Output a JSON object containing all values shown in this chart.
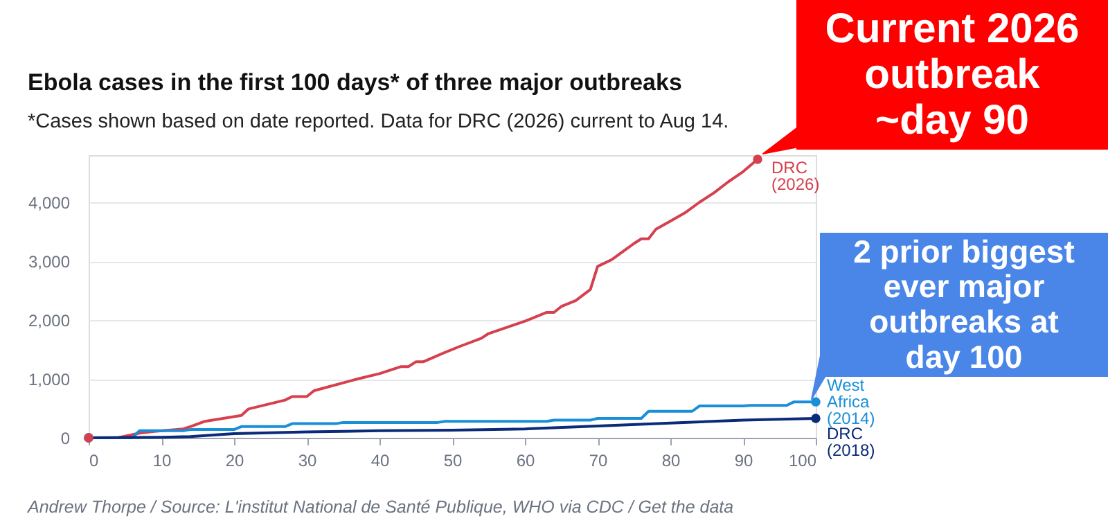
{
  "chart_data": {
    "type": "line",
    "title": "Ebola cases in the first 100 days* of three major outbreaks",
    "subtitle": "*Cases shown based on date reported. Data for DRC (2026) current to Aug 14.",
    "xlim": [
      0,
      100
    ],
    "xticks": [
      0,
      10,
      20,
      30,
      40,
      50,
      60,
      70,
      80,
      90,
      100
    ],
    "ylim": [
      0,
      4800
    ],
    "yticks": [
      0,
      {
        "value": 1000,
        "label": "1,000"
      },
      {
        "value": 2000,
        "label": "2,000"
      },
      {
        "value": 3000,
        "label": "3,000"
      },
      {
        "value": 4000,
        "label": "4,000"
      }
    ],
    "grid": "y",
    "series": [
      {
        "name": "DRC (2026)",
        "color": "#d6404e",
        "x": [
          0,
          4,
          7,
          9,
          13,
          14,
          16,
          21,
          22,
          27,
          28,
          30,
          31,
          37,
          40,
          43,
          44,
          45,
          46,
          49,
          51,
          54,
          55,
          60,
          63,
          64,
          65,
          67,
          69,
          70,
          72,
          74,
          75,
          76,
          77,
          78,
          80,
          82,
          84,
          86,
          88,
          90,
          92
        ],
        "values": [
          0,
          0,
          80,
          110,
          150,
          190,
          280,
          380,
          490,
          640,
          700,
          700,
          800,
          1000,
          1090,
          1210,
          1210,
          1290,
          1290,
          1450,
          1550,
          1690,
          1770,
          1980,
          2130,
          2130,
          2230,
          2330,
          2520,
          2910,
          3030,
          3210,
          3300,
          3380,
          3380,
          3540,
          3680,
          3820,
          4000,
          4160,
          4350,
          4520,
          4730
        ]
      },
      {
        "name": "West Africa (2014)",
        "color": "#1a8fd8",
        "x": [
          0,
          6,
          7,
          13,
          14,
          20,
          21,
          27,
          28,
          34,
          35,
          48,
          49,
          63,
          64,
          69,
          70,
          76,
          77,
          83,
          84,
          90,
          91,
          96,
          97,
          100
        ],
        "values": [
          0,
          0,
          120,
          120,
          140,
          140,
          190,
          190,
          240,
          240,
          260,
          260,
          280,
          280,
          300,
          300,
          330,
          330,
          450,
          450,
          540,
          540,
          550,
          550,
          610,
          610
        ]
      },
      {
        "name": "DRC (2018)",
        "color": "#0a2a7a",
        "x": [
          0,
          10,
          14,
          20,
          30,
          40,
          50,
          60,
          70,
          80,
          90,
          100
        ],
        "values": [
          0,
          10,
          20,
          70,
          100,
          120,
          130,
          150,
          200,
          250,
          300,
          330
        ]
      }
    ],
    "annotations": [
      "Andrew Thorpe / Source: L'institut National de Santé Publique, WHO via CDC / Get the data",
      {
        "text": "Current 2026 outbreak ~day 90",
        "x": 92,
        "y": 4730
      },
      {
        "text": "2 prior biggest ever major outbreaks at day 100",
        "x": 100,
        "y": 610
      }
    ]
  }
}
